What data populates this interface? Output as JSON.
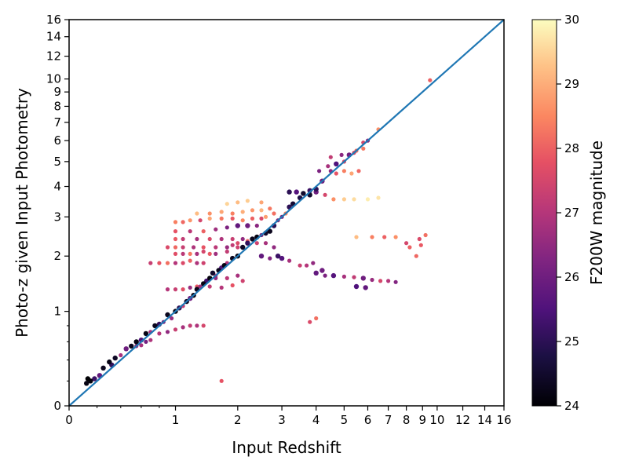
{
  "chart_data": {
    "type": "scatter",
    "title": "",
    "xlabel": "Input Redshift",
    "ylabel": "Photo-z given Input Photometry",
    "x_scale": "log(1+z)",
    "y_scale": "log(1+z)",
    "xlim": [
      0,
      16
    ],
    "ylim": [
      0,
      16
    ],
    "x_ticks": [
      0,
      1,
      2,
      3,
      4,
      5,
      6,
      7,
      8,
      9,
      10,
      12,
      14,
      16
    ],
    "y_ticks": [
      0,
      1,
      2,
      3,
      4,
      5,
      6,
      7,
      8,
      9,
      10,
      12,
      14,
      16
    ],
    "grid": false,
    "legend": "none",
    "one_to_one_line": {
      "color": "#1f77b4"
    },
    "colorbar": {
      "label": "F200W magnitude",
      "colormap": "magma",
      "range": [
        24,
        30
      ],
      "ticks": [
        24,
        25,
        26,
        27,
        28,
        29,
        30
      ],
      "position": "right"
    },
    "points": [
      {
        "x": 0.12,
        "y": 0.18,
        "mag": 24.2
      },
      {
        "x": 0.15,
        "y": 0.2,
        "mag": 24.1
      },
      {
        "x": 0.13,
        "y": 0.22,
        "mag": 24.0
      },
      {
        "x": 0.18,
        "y": 0.22,
        "mag": 25.2
      },
      {
        "x": 0.22,
        "y": 0.25,
        "mag": 25.8
      },
      {
        "x": 0.25,
        "y": 0.32,
        "mag": 24.3
      },
      {
        "x": 0.3,
        "y": 0.38,
        "mag": 24.2
      },
      {
        "x": 0.32,
        "y": 0.35,
        "mag": 25.1
      },
      {
        "x": 0.35,
        "y": 0.42,
        "mag": 24.4
      },
      {
        "x": 0.4,
        "y": 0.45,
        "mag": 26.8
      },
      {
        "x": 0.45,
        "y": 0.52,
        "mag": 26.0
      },
      {
        "x": 0.5,
        "y": 0.55,
        "mag": 24.3
      },
      {
        "x": 0.55,
        "y": 0.6,
        "mag": 24.2
      },
      {
        "x": 0.6,
        "y": 0.62,
        "mag": 25.5
      },
      {
        "x": 0.65,
        "y": 0.7,
        "mag": 24.2
      },
      {
        "x": 0.7,
        "y": 0.72,
        "mag": 26.8
      },
      {
        "x": 0.75,
        "y": 0.8,
        "mag": 24.3
      },
      {
        "x": 0.8,
        "y": 0.82,
        "mag": 25.1
      },
      {
        "x": 0.85,
        "y": 0.85,
        "mag": 26.2
      },
      {
        "x": 0.9,
        "y": 0.95,
        "mag": 24.3
      },
      {
        "x": 0.95,
        "y": 0.9,
        "mag": 26.6
      },
      {
        "x": 1.0,
        "y": 1.0,
        "mag": 24.2
      },
      {
        "x": 1.05,
        "y": 1.05,
        "mag": 25.0
      },
      {
        "x": 1.1,
        "y": 1.08,
        "mag": 27.2
      },
      {
        "x": 1.15,
        "y": 1.15,
        "mag": 24.4
      },
      {
        "x": 1.2,
        "y": 1.2,
        "mag": 26.0
      },
      {
        "x": 1.25,
        "y": 1.25,
        "mag": 24.2
      },
      {
        "x": 1.3,
        "y": 1.35,
        "mag": 24.3
      },
      {
        "x": 1.35,
        "y": 1.4,
        "mag": 26.7
      },
      {
        "x": 1.4,
        "y": 1.45,
        "mag": 24.2
      },
      {
        "x": 1.45,
        "y": 1.5,
        "mag": 25.3
      },
      {
        "x": 1.5,
        "y": 1.55,
        "mag": 24.1
      },
      {
        "x": 1.55,
        "y": 1.65,
        "mag": 24.5
      },
      {
        "x": 1.6,
        "y": 1.6,
        "mag": 26.9
      },
      {
        "x": 1.65,
        "y": 1.7,
        "mag": 24.3
      },
      {
        "x": 1.7,
        "y": 1.75,
        "mag": 25.6
      },
      {
        "x": 1.75,
        "y": 1.8,
        "mag": 24.2
      },
      {
        "x": 1.8,
        "y": 1.85,
        "mag": 27.0
      },
      {
        "x": 1.9,
        "y": 1.95,
        "mag": 24.3
      },
      {
        "x": 2.0,
        "y": 2.0,
        "mag": 24.2
      },
      {
        "x": 2.1,
        "y": 2.2,
        "mag": 24.4
      },
      {
        "x": 2.2,
        "y": 2.3,
        "mag": 25.1
      },
      {
        "x": 2.3,
        "y": 2.4,
        "mag": 24.3
      },
      {
        "x": 2.4,
        "y": 2.45,
        "mag": 24.2
      },
      {
        "x": 2.5,
        "y": 2.5,
        "mag": 26.1
      },
      {
        "x": 2.6,
        "y": 2.55,
        "mag": 24.5
      },
      {
        "x": 2.7,
        "y": 2.6,
        "mag": 24.3
      },
      {
        "x": 2.8,
        "y": 2.75,
        "mag": 25.0
      },
      {
        "x": 2.9,
        "y": 2.9,
        "mag": 26.3
      },
      {
        "x": 3.0,
        "y": 3.0,
        "mag": 26.2
      },
      {
        "x": 3.1,
        "y": 3.1,
        "mag": 28.5
      },
      {
        "x": 3.2,
        "y": 3.3,
        "mag": 25.0
      },
      {
        "x": 3.3,
        "y": 3.4,
        "mag": 24.6
      },
      {
        "x": 3.5,
        "y": 3.6,
        "mag": 24.8
      },
      {
        "x": 3.8,
        "y": 3.7,
        "mag": 24.5
      },
      {
        "x": 4.0,
        "y": 3.9,
        "mag": 25.0
      },
      {
        "x": 4.2,
        "y": 4.2,
        "mag": 26.0
      },
      {
        "x": 4.5,
        "y": 4.6,
        "mag": 26.5
      },
      {
        "x": 4.7,
        "y": 4.9,
        "mag": 25.5
      },
      {
        "x": 5.0,
        "y": 5.0,
        "mag": 27.6
      },
      {
        "x": 5.2,
        "y": 5.3,
        "mag": 26.0
      },
      {
        "x": 5.5,
        "y": 5.5,
        "mag": 28.2
      },
      {
        "x": 5.8,
        "y": 5.9,
        "mag": 27.5
      },
      {
        "x": 6.0,
        "y": 6.0,
        "mag": 26.4
      },
      {
        "x": 6.5,
        "y": 6.6,
        "mag": 28.6
      },
      {
        "x": 9.5,
        "y": 9.9,
        "mag": 28.0
      },
      {
        "x": 0.5,
        "y": 0.55,
        "mag": 26.7
      },
      {
        "x": 0.55,
        "y": 0.55,
        "mag": 26.4
      },
      {
        "x": 0.6,
        "y": 0.56,
        "mag": 26.8
      },
      {
        "x": 0.65,
        "y": 0.6,
        "mag": 26.1
      },
      {
        "x": 0.7,
        "y": 0.62,
        "mag": 26.9
      },
      {
        "x": 0.8,
        "y": 0.7,
        "mag": 27.0
      },
      {
        "x": 0.9,
        "y": 0.72,
        "mag": 26.5
      },
      {
        "x": 1.0,
        "y": 0.75,
        "mag": 27.3
      },
      {
        "x": 1.1,
        "y": 0.78,
        "mag": 26.8
      },
      {
        "x": 1.2,
        "y": 0.8,
        "mag": 27.2
      },
      {
        "x": 1.3,
        "y": 0.8,
        "mag": 26.9
      },
      {
        "x": 1.4,
        "y": 0.8,
        "mag": 27.5
      },
      {
        "x": 0.9,
        "y": 1.35,
        "mag": 27.0
      },
      {
        "x": 1.0,
        "y": 1.35,
        "mag": 27.3
      },
      {
        "x": 1.1,
        "y": 1.35,
        "mag": 27.7
      },
      {
        "x": 1.2,
        "y": 1.38,
        "mag": 26.6
      },
      {
        "x": 1.3,
        "y": 1.4,
        "mag": 27.9
      },
      {
        "x": 1.5,
        "y": 1.4,
        "mag": 27.2
      },
      {
        "x": 1.7,
        "y": 1.38,
        "mag": 27.0
      },
      {
        "x": 1.9,
        "y": 1.42,
        "mag": 27.8
      },
      {
        "x": 1.6,
        "y": 1.55,
        "mag": 26.5
      },
      {
        "x": 1.8,
        "y": 1.55,
        "mag": 27.1
      },
      {
        "x": 2.0,
        "y": 1.6,
        "mag": 26.8
      },
      {
        "x": 2.1,
        "y": 1.5,
        "mag": 27.4
      },
      {
        "x": 0.7,
        "y": 1.85,
        "mag": 27.3
      },
      {
        "x": 0.8,
        "y": 1.85,
        "mag": 27.8
      },
      {
        "x": 0.9,
        "y": 1.85,
        "mag": 28.2
      },
      {
        "x": 1.0,
        "y": 1.85,
        "mag": 27.0
      },
      {
        "x": 1.1,
        "y": 1.85,
        "mag": 27.6
      },
      {
        "x": 1.2,
        "y": 1.9,
        "mag": 28.0
      },
      {
        "x": 1.3,
        "y": 1.85,
        "mag": 26.9
      },
      {
        "x": 1.4,
        "y": 1.85,
        "mag": 27.4
      },
      {
        "x": 1.0,
        "y": 2.05,
        "mag": 27.7
      },
      {
        "x": 1.1,
        "y": 2.05,
        "mag": 27.1
      },
      {
        "x": 1.2,
        "y": 2.05,
        "mag": 28.3
      },
      {
        "x": 1.3,
        "y": 2.05,
        "mag": 26.8
      },
      {
        "x": 1.4,
        "y": 2.1,
        "mag": 27.5
      },
      {
        "x": 1.5,
        "y": 2.05,
        "mag": 27.9
      },
      {
        "x": 1.6,
        "y": 2.05,
        "mag": 26.7
      },
      {
        "x": 1.8,
        "y": 2.1,
        "mag": 27.2
      },
      {
        "x": 0.9,
        "y": 2.2,
        "mag": 27.6
      },
      {
        "x": 1.0,
        "y": 2.2,
        "mag": 28.1
      },
      {
        "x": 1.1,
        "y": 2.2,
        "mag": 27.3
      },
      {
        "x": 1.25,
        "y": 2.2,
        "mag": 26.9
      },
      {
        "x": 1.4,
        "y": 2.2,
        "mag": 27.8
      },
      {
        "x": 1.6,
        "y": 2.2,
        "mag": 27.1
      },
      {
        "x": 1.8,
        "y": 2.2,
        "mag": 26.6
      },
      {
        "x": 2.0,
        "y": 2.2,
        "mag": 27.4
      },
      {
        "x": 1.0,
        "y": 2.4,
        "mag": 27.9
      },
      {
        "x": 1.1,
        "y": 2.4,
        "mag": 27.2
      },
      {
        "x": 1.3,
        "y": 2.4,
        "mag": 26.8
      },
      {
        "x": 1.5,
        "y": 2.4,
        "mag": 27.6
      },
      {
        "x": 1.7,
        "y": 2.4,
        "mag": 26.9
      },
      {
        "x": 1.9,
        "y": 2.4,
        "mag": 27.3
      },
      {
        "x": 2.1,
        "y": 2.4,
        "mag": 26.5
      },
      {
        "x": 2.3,
        "y": 2.4,
        "mag": 27.0
      },
      {
        "x": 1.0,
        "y": 2.6,
        "mag": 27.8
      },
      {
        "x": 1.2,
        "y": 2.6,
        "mag": 27.1
      },
      {
        "x": 1.4,
        "y": 2.6,
        "mag": 28.0
      },
      {
        "x": 1.6,
        "y": 2.65,
        "mag": 26.7
      },
      {
        "x": 1.8,
        "y": 2.7,
        "mag": 26.2
      },
      {
        "x": 2.0,
        "y": 2.75,
        "mag": 25.8
      },
      {
        "x": 2.2,
        "y": 2.75,
        "mag": 26.0
      },
      {
        "x": 2.4,
        "y": 2.75,
        "mag": 26.4
      },
      {
        "x": 1.0,
        "y": 2.85,
        "mag": 28.4
      },
      {
        "x": 1.1,
        "y": 2.85,
        "mag": 28.1
      },
      {
        "x": 1.2,
        "y": 2.9,
        "mag": 28.7
      },
      {
        "x": 1.35,
        "y": 2.9,
        "mag": 27.5
      },
      {
        "x": 1.5,
        "y": 2.95,
        "mag": 28.9
      },
      {
        "x": 1.7,
        "y": 2.95,
        "mag": 28.3
      },
      {
        "x": 1.9,
        "y": 2.95,
        "mag": 27.9
      },
      {
        "x": 2.1,
        "y": 2.9,
        "mag": 28.5
      },
      {
        "x": 2.3,
        "y": 2.95,
        "mag": 28.0
      },
      {
        "x": 2.5,
        "y": 2.95,
        "mag": 27.6
      },
      {
        "x": 2.6,
        "y": 3.0,
        "mag": 28.8
      },
      {
        "x": 2.8,
        "y": 3.1,
        "mag": 28.2
      },
      {
        "x": 1.3,
        "y": 3.1,
        "mag": 29.2
      },
      {
        "x": 1.5,
        "y": 3.1,
        "mag": 28.6
      },
      {
        "x": 1.7,
        "y": 3.15,
        "mag": 28.9
      },
      {
        "x": 1.9,
        "y": 3.1,
        "mag": 28.4
      },
      {
        "x": 2.1,
        "y": 3.15,
        "mag": 29.0
      },
      {
        "x": 2.3,
        "y": 3.2,
        "mag": 28.7
      },
      {
        "x": 2.5,
        "y": 3.2,
        "mag": 29.1
      },
      {
        "x": 2.7,
        "y": 3.25,
        "mag": 28.3
      },
      {
        "x": 1.8,
        "y": 3.4,
        "mag": 29.5
      },
      {
        "x": 2.0,
        "y": 3.45,
        "mag": 29.2
      },
      {
        "x": 2.2,
        "y": 3.5,
        "mag": 29.4
      },
      {
        "x": 2.5,
        "y": 3.45,
        "mag": 28.9
      },
      {
        "x": 1.9,
        "y": 2.25,
        "mag": 27.2
      },
      {
        "x": 2.0,
        "y": 2.3,
        "mag": 27.6
      },
      {
        "x": 2.2,
        "y": 2.35,
        "mag": 28.0
      },
      {
        "x": 2.4,
        "y": 2.3,
        "mag": 27.4
      },
      {
        "x": 2.6,
        "y": 2.3,
        "mag": 26.8
      },
      {
        "x": 2.8,
        "y": 2.2,
        "mag": 26.5
      },
      {
        "x": 2.9,
        "y": 2.0,
        "mag": 25.2
      },
      {
        "x": 3.0,
        "y": 1.95,
        "mag": 25.6
      },
      {
        "x": 2.5,
        "y": 2.0,
        "mag": 25.8
      },
      {
        "x": 2.7,
        "y": 1.95,
        "mag": 26.3
      },
      {
        "x": 3.2,
        "y": 1.9,
        "mag": 26.8
      },
      {
        "x": 3.5,
        "y": 1.8,
        "mag": 27.3
      },
      {
        "x": 3.7,
        "y": 1.8,
        "mag": 27.0
      },
      {
        "x": 3.9,
        "y": 1.85,
        "mag": 26.5
      },
      {
        "x": 4.2,
        "y": 1.7,
        "mag": 26.0
      },
      {
        "x": 4.0,
        "y": 1.65,
        "mag": 25.8
      },
      {
        "x": 4.3,
        "y": 1.6,
        "mag": 26.2
      },
      {
        "x": 4.6,
        "y": 1.6,
        "mag": 25.6
      },
      {
        "x": 5.0,
        "y": 1.58,
        "mag": 26.8
      },
      {
        "x": 5.4,
        "y": 1.57,
        "mag": 27.2
      },
      {
        "x": 5.8,
        "y": 1.55,
        "mag": 26.0
      },
      {
        "x": 6.2,
        "y": 1.52,
        "mag": 26.6
      },
      {
        "x": 6.6,
        "y": 1.5,
        "mag": 27.5
      },
      {
        "x": 7.0,
        "y": 1.5,
        "mag": 27.0
      },
      {
        "x": 7.4,
        "y": 1.48,
        "mag": 26.3
      },
      {
        "x": 5.5,
        "y": 1.4,
        "mag": 25.5
      },
      {
        "x": 5.9,
        "y": 1.38,
        "mag": 25.8
      },
      {
        "x": 3.8,
        "y": 0.85,
        "mag": 27.6
      },
      {
        "x": 4.0,
        "y": 0.9,
        "mag": 28.2
      },
      {
        "x": 1.7,
        "y": 0.2,
        "mag": 27.8
      },
      {
        "x": 3.2,
        "y": 3.8,
        "mag": 25.0
      },
      {
        "x": 3.4,
        "y": 3.8,
        "mag": 25.6
      },
      {
        "x": 3.6,
        "y": 3.75,
        "mag": 24.5
      },
      {
        "x": 3.8,
        "y": 3.85,
        "mag": 25.2
      },
      {
        "x": 4.0,
        "y": 3.8,
        "mag": 26.0
      },
      {
        "x": 4.3,
        "y": 3.7,
        "mag": 27.5
      },
      {
        "x": 4.6,
        "y": 3.55,
        "mag": 28.6
      },
      {
        "x": 5.0,
        "y": 3.55,
        "mag": 29.4
      },
      {
        "x": 5.4,
        "y": 3.55,
        "mag": 29.6
      },
      {
        "x": 6.0,
        "y": 3.55,
        "mag": 29.8
      },
      {
        "x": 6.5,
        "y": 3.6,
        "mag": 29.7
      },
      {
        "x": 4.1,
        "y": 4.6,
        "mag": 26.2
      },
      {
        "x": 4.4,
        "y": 4.8,
        "mag": 26.8
      },
      {
        "x": 4.7,
        "y": 4.5,
        "mag": 27.8
      },
      {
        "x": 5.0,
        "y": 4.6,
        "mag": 28.4
      },
      {
        "x": 5.3,
        "y": 4.5,
        "mag": 28.9
      },
      {
        "x": 5.6,
        "y": 4.6,
        "mag": 28.1
      },
      {
        "x": 4.5,
        "y": 5.2,
        "mag": 27.2
      },
      {
        "x": 4.9,
        "y": 5.3,
        "mag": 26.4
      },
      {
        "x": 5.4,
        "y": 5.4,
        "mag": 27.6
      },
      {
        "x": 5.8,
        "y": 5.6,
        "mag": 28.3
      },
      {
        "x": 8.0,
        "y": 2.3,
        "mag": 27.5
      },
      {
        "x": 8.2,
        "y": 2.2,
        "mag": 28.0
      },
      {
        "x": 8.8,
        "y": 2.4,
        "mag": 27.6
      },
      {
        "x": 9.2,
        "y": 2.5,
        "mag": 28.2
      },
      {
        "x": 6.2,
        "y": 2.45,
        "mag": 28.4
      },
      {
        "x": 6.8,
        "y": 2.45,
        "mag": 28.0
      },
      {
        "x": 7.4,
        "y": 2.45,
        "mag": 28.6
      },
      {
        "x": 5.5,
        "y": 2.45,
        "mag": 29.2
      },
      {
        "x": 8.6,
        "y": 2.0,
        "mag": 28.1
      },
      {
        "x": 8.9,
        "y": 2.25,
        "mag": 27.9
      }
    ]
  }
}
